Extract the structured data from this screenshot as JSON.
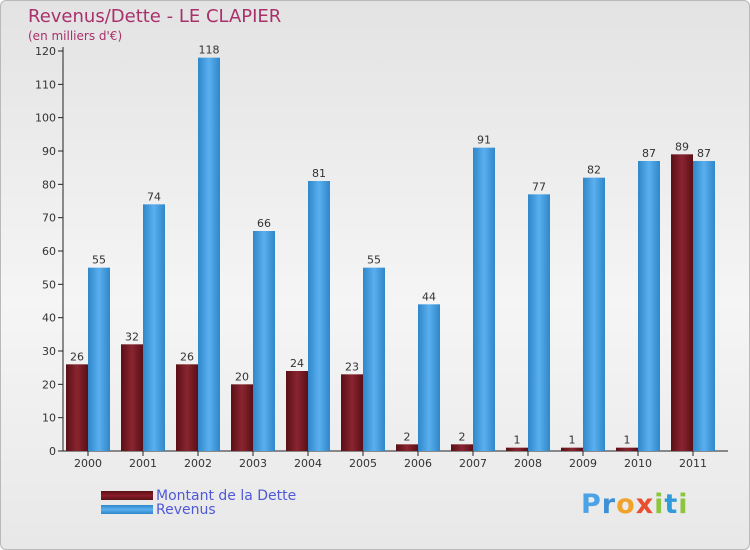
{
  "chart_data": {
    "type": "bar",
    "title": "Revenus/Dette - LE CLAPIER",
    "subtitle": "(en milliers d'€)",
    "categories": [
      "2000",
      "2001",
      "2002",
      "2003",
      "2004",
      "2005",
      "2006",
      "2007",
      "2008",
      "2009",
      "2010",
      "2011"
    ],
    "series": [
      {
        "name": "Montant de la Dette",
        "color": "#7a1520",
        "values": [
          26,
          32,
          26,
          20,
          24,
          23,
          2,
          2,
          1,
          1,
          1,
          89
        ]
      },
      {
        "name": "Revenus",
        "color": "#4aa3e6",
        "values": [
          55,
          74,
          118,
          66,
          81,
          55,
          44,
          91,
          77,
          82,
          87,
          87
        ]
      }
    ],
    "ylim": [
      0,
      120
    ],
    "yticks": [
      0,
      10,
      20,
      30,
      40,
      50,
      60,
      70,
      80,
      90,
      100,
      110,
      120
    ],
    "grid": false,
    "legend": "bottom-left"
  },
  "legend": {
    "debt_label": "Montant de la Dette",
    "revenue_label": "Revenus"
  },
  "logo": {
    "letters": [
      "P",
      "r",
      "o",
      "x",
      "i",
      "t",
      "i"
    ],
    "colors": [
      "#4aa3e6",
      "#3e8fd4",
      "#f0a32a",
      "#e94e2e",
      "#8cc63f",
      "#2f9bd8",
      "#8cc63f"
    ]
  }
}
